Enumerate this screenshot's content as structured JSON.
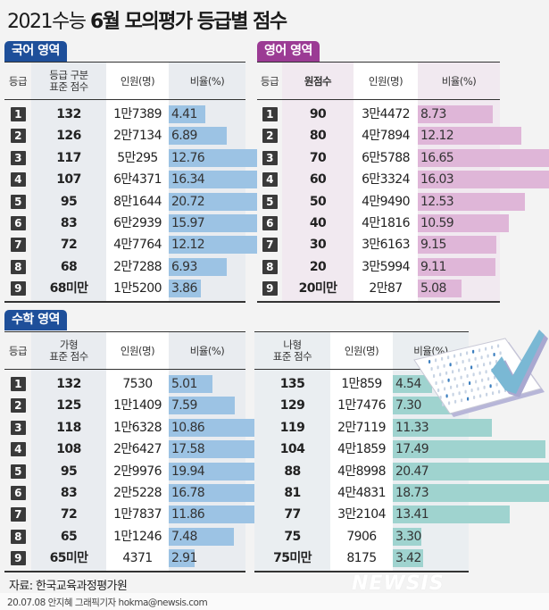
{
  "title": {
    "prefix": "2021수능 ",
    "bold": "6월 모의평가 등급별 점수"
  },
  "colors": {
    "korean_tab": "#1e4f9a",
    "english_tab": "#9b3b94",
    "math_tab": "#1e4f9a",
    "korean_bar": "#9cc3e4",
    "english_bar": "#dfb6d8",
    "math_ga_bar": "#9cc3e4",
    "math_na_bar": "#9fd3cf",
    "badge": "#3a3a3a"
  },
  "korean": {
    "tab": "국어 영역",
    "headers": {
      "grade": "등급",
      "score": "등급 구분\n표준 점수",
      "people": "인원(명)",
      "ratio": "비율(%)"
    },
    "rows": [
      {
        "grade": "1",
        "score": "132",
        "people": "1만7389",
        "ratio": "4.41"
      },
      {
        "grade": "2",
        "score": "126",
        "people": "2만7134",
        "ratio": "6.89"
      },
      {
        "grade": "3",
        "score": "117",
        "people": "5만295",
        "ratio": "12.76"
      },
      {
        "grade": "4",
        "score": "107",
        "people": "6만4371",
        "ratio": "16.34"
      },
      {
        "grade": "5",
        "score": "95",
        "people": "8만1644",
        "ratio": "20.72"
      },
      {
        "grade": "6",
        "score": "83",
        "people": "6만2939",
        "ratio": "15.97"
      },
      {
        "grade": "7",
        "score": "72",
        "people": "4만7764",
        "ratio": "12.12"
      },
      {
        "grade": "8",
        "score": "68",
        "people": "2만7288",
        "ratio": "6.93"
      },
      {
        "grade": "9",
        "score": "68미만",
        "people": "1만5200",
        "ratio": "3.86"
      }
    ]
  },
  "english": {
    "tab": "영어 영역",
    "headers": {
      "grade": "등급",
      "score": "원점수",
      "people": "인원(명)",
      "ratio": "비율(%)"
    },
    "rows": [
      {
        "grade": "1",
        "score": "90",
        "people": "3만4472",
        "ratio": "8.73"
      },
      {
        "grade": "2",
        "score": "80",
        "people": "4만7894",
        "ratio": "12.12"
      },
      {
        "grade": "3",
        "score": "70",
        "people": "6만5788",
        "ratio": "16.65"
      },
      {
        "grade": "4",
        "score": "60",
        "people": "6만3324",
        "ratio": "16.03"
      },
      {
        "grade": "5",
        "score": "50",
        "people": "4만9490",
        "ratio": "12.53"
      },
      {
        "grade": "6",
        "score": "40",
        "people": "4만1816",
        "ratio": "10.59"
      },
      {
        "grade": "7",
        "score": "30",
        "people": "3만6163",
        "ratio": "9.15"
      },
      {
        "grade": "8",
        "score": "20",
        "people": "3만5994",
        "ratio": "9.11"
      },
      {
        "grade": "9",
        "score": "20미만",
        "people": "2만87",
        "ratio": "5.08"
      }
    ]
  },
  "math": {
    "tab": "수학 영역",
    "ga": {
      "headers": {
        "grade": "등급",
        "score": "가형\n표준 점수",
        "people": "인원(명)",
        "ratio": "비율(%)"
      },
      "rows": [
        {
          "grade": "1",
          "score": "132",
          "people": "7530",
          "ratio": "5.01"
        },
        {
          "grade": "2",
          "score": "125",
          "people": "1만1409",
          "ratio": "7.59"
        },
        {
          "grade": "3",
          "score": "118",
          "people": "1만6328",
          "ratio": "10.86"
        },
        {
          "grade": "4",
          "score": "108",
          "people": "2만6427",
          "ratio": "17.58"
        },
        {
          "grade": "5",
          "score": "95",
          "people": "2만9976",
          "ratio": "19.94"
        },
        {
          "grade": "6",
          "score": "83",
          "people": "2만5228",
          "ratio": "16.78"
        },
        {
          "grade": "7",
          "score": "72",
          "people": "1만7837",
          "ratio": "11.86"
        },
        {
          "grade": "8",
          "score": "65",
          "people": "1만1246",
          "ratio": "7.48"
        },
        {
          "grade": "9",
          "score": "65미만",
          "people": "4371",
          "ratio": "2.91"
        }
      ]
    },
    "na": {
      "headers": {
        "score": "나형\n표준 점수",
        "people": "인원(명)",
        "ratio": "비율(%)"
      },
      "rows": [
        {
          "score": "135",
          "people": "1만859",
          "ratio": "4.54"
        },
        {
          "score": "129",
          "people": "1만7476",
          "ratio": "7.30"
        },
        {
          "score": "119",
          "people": "2만7119",
          "ratio": "11.33"
        },
        {
          "score": "104",
          "people": "4만1859",
          "ratio": "17.49"
        },
        {
          "score": "88",
          "people": "4만8998",
          "ratio": "20.47"
        },
        {
          "score": "81",
          "people": "4만4831",
          "ratio": "18.73"
        },
        {
          "score": "77",
          "people": "3만2104",
          "ratio": "13.41"
        },
        {
          "score": "75",
          "people": "7906",
          "ratio": "3.30"
        },
        {
          "score": "75미만",
          "people": "8175",
          "ratio": "3.42"
        }
      ]
    }
  },
  "footer": {
    "source": "자료: 한국교육과정평가원",
    "credit": "20.07.08 안지혜 그래픽기자 hokma@newsis.com",
    "logo": "NEWSIS"
  },
  "chart_data": [
    {
      "type": "table",
      "title": "국어 영역",
      "columns": [
        "등급",
        "등급 구분 표준 점수",
        "인원(명)",
        "비율(%)"
      ],
      "categories": [
        "1",
        "2",
        "3",
        "4",
        "5",
        "6",
        "7",
        "8",
        "9"
      ],
      "series": [
        {
          "name": "표준 점수",
          "values": [
            "132",
            "126",
            "117",
            "107",
            "95",
            "83",
            "72",
            "68",
            "68미만"
          ]
        },
        {
          "name": "인원(명)",
          "values": [
            17389,
            27134,
            50295,
            64371,
            81644,
            62939,
            47764,
            27288,
            15200
          ]
        },
        {
          "name": "비율(%)",
          "values": [
            4.41,
            6.89,
            12.76,
            16.34,
            20.72,
            15.97,
            12.12,
            6.93,
            3.86
          ]
        }
      ]
    },
    {
      "type": "table",
      "title": "영어 영역",
      "columns": [
        "등급",
        "원점수",
        "인원(명)",
        "비율(%)"
      ],
      "categories": [
        "1",
        "2",
        "3",
        "4",
        "5",
        "6",
        "7",
        "8",
        "9"
      ],
      "series": [
        {
          "name": "원점수",
          "values": [
            "90",
            "80",
            "70",
            "60",
            "50",
            "40",
            "30",
            "20",
            "20미만"
          ]
        },
        {
          "name": "인원(명)",
          "values": [
            34472,
            47894,
            65788,
            63324,
            49490,
            41816,
            36163,
            35994,
            20087
          ]
        },
        {
          "name": "비율(%)",
          "values": [
            8.73,
            12.12,
            16.65,
            16.03,
            12.53,
            10.59,
            9.15,
            9.11,
            5.08
          ]
        }
      ]
    },
    {
      "type": "table",
      "title": "수학 영역 가형",
      "columns": [
        "등급",
        "가형 표준 점수",
        "인원(명)",
        "비율(%)"
      ],
      "categories": [
        "1",
        "2",
        "3",
        "4",
        "5",
        "6",
        "7",
        "8",
        "9"
      ],
      "series": [
        {
          "name": "표준 점수",
          "values": [
            "132",
            "125",
            "118",
            "108",
            "95",
            "83",
            "72",
            "65",
            "65미만"
          ]
        },
        {
          "name": "인원(명)",
          "values": [
            7530,
            11409,
            16328,
            26427,
            29976,
            25228,
            17837,
            11246,
            4371
          ]
        },
        {
          "name": "비율(%)",
          "values": [
            5.01,
            7.59,
            10.86,
            17.58,
            19.94,
            16.78,
            11.86,
            7.48,
            2.91
          ]
        }
      ]
    },
    {
      "type": "table",
      "title": "수학 영역 나형",
      "columns": [
        "나형 표준 점수",
        "인원(명)",
        "비율(%)"
      ],
      "categories": [
        "1",
        "2",
        "3",
        "4",
        "5",
        "6",
        "7",
        "8",
        "9"
      ],
      "series": [
        {
          "name": "표준 점수",
          "values": [
            "135",
            "129",
            "119",
            "104",
            "88",
            "81",
            "77",
            "75",
            "75미만"
          ]
        },
        {
          "name": "인원(명)",
          "values": [
            10859,
            17476,
            27119,
            41859,
            48998,
            44831,
            32104,
            7906,
            8175
          ]
        },
        {
          "name": "비율(%)",
          "values": [
            4.54,
            7.3,
            11.33,
            17.49,
            20.47,
            18.73,
            13.41,
            3.3,
            3.42
          ]
        }
      ]
    }
  ]
}
